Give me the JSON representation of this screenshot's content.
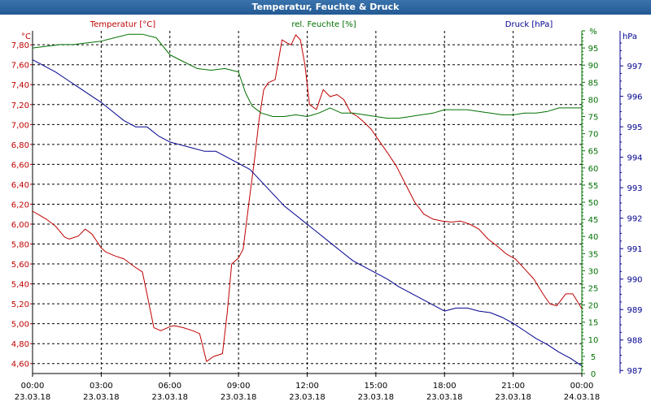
{
  "window": {
    "title": "Temperatur, Feuchte & Druck"
  },
  "chart_data": {
    "type": "line",
    "title": "Temperatur, Feuchte & Druck",
    "grid": true,
    "xlabel": "",
    "x_ticks": [
      {
        "time": "00:00",
        "date": "23.03.18"
      },
      {
        "time": "03:00",
        "date": "23.03.18"
      },
      {
        "time": "06:00",
        "date": "23.03.18"
      },
      {
        "time": "09:00",
        "date": "23.03.18"
      },
      {
        "time": "12:00",
        "date": "23.03.18"
      },
      {
        "time": "15:00",
        "date": "23.03.18"
      },
      {
        "time": "18:00",
        "date": "23.03.18"
      },
      {
        "time": "21:00",
        "date": "23.03.18"
      },
      {
        "time": "00:00",
        "date": "24.03.18"
      }
    ],
    "x_range_hours": [
      0,
      24
    ],
    "axes": {
      "temperature": {
        "label": "Temperatur [°C]",
        "unit": "°C",
        "color": "#c00000",
        "position": "left",
        "range": [
          4.5,
          7.94
        ],
        "ticks": [
          "4,60",
          "4,80",
          "5,00",
          "5,20",
          "5,40",
          "5,60",
          "5,80",
          "6,00",
          "6,20",
          "6,40",
          "6,60",
          "6,80",
          "7,00",
          "7,20",
          "7,40",
          "7,60",
          "7,80"
        ]
      },
      "humidity": {
        "label": "rel. Feuchte [%]",
        "unit": "%",
        "color": "#007000",
        "position": "right",
        "range": [
          0,
          100
        ],
        "ticks": [
          "0",
          "5",
          "10",
          "15",
          "20",
          "25",
          "30",
          "35",
          "40",
          "45",
          "50",
          "55",
          "60",
          "65",
          "70",
          "75",
          "80",
          "85",
          "90",
          "95",
          "%"
        ]
      },
      "pressure": {
        "label": "Druck [hPa]",
        "unit": "hPa",
        "color": "#000090",
        "position": "right",
        "range": [
          986.9,
          998.15
        ],
        "ticks": [
          "987",
          "988",
          "989",
          "990",
          "991",
          "992",
          "993",
          "994",
          "995",
          "996",
          "997",
          "hPa"
        ]
      }
    },
    "series": [
      {
        "name": "Temperatur [°C]",
        "axis": "temperature",
        "color": "#c00000",
        "x": [
          0,
          0.3,
          0.6,
          1,
          1.4,
          1.6,
          2,
          2.3,
          2.6,
          3,
          3.2,
          3.6,
          4,
          4.4,
          4.8,
          5,
          5.3,
          5.6,
          6,
          6.2,
          6.6,
          7,
          7.3,
          7.6,
          7.9,
          8.3,
          8.5,
          8.7,
          9,
          9.2,
          9.5,
          9.7,
          9.9,
          10.1,
          10.3,
          10.6,
          10.9,
          11.1,
          11.3,
          11.5,
          11.7,
          11.9,
          12.1,
          12.4,
          12.7,
          13,
          13.3,
          13.6,
          13.9,
          14.2,
          14.5,
          14.8,
          15.1,
          15.5,
          15.9,
          16.3,
          16.7,
          17.1,
          17.5,
          17.9,
          18.3,
          18.7,
          19.1,
          19.5,
          19.9,
          20.3,
          20.7,
          21.1,
          21.5,
          21.9,
          22.3,
          22.6,
          22.9,
          23.3,
          23.6,
          24
        ],
        "values": [
          6.13,
          6.09,
          6.05,
          5.98,
          5.87,
          5.85,
          5.88,
          5.95,
          5.9,
          5.76,
          5.72,
          5.68,
          5.65,
          5.58,
          5.52,
          5.3,
          4.96,
          4.93,
          4.97,
          4.98,
          4.96,
          4.93,
          4.9,
          4.62,
          4.67,
          4.7,
          5.1,
          5.6,
          5.66,
          5.75,
          6.3,
          6.65,
          7.05,
          7.35,
          7.42,
          7.45,
          7.85,
          7.82,
          7.8,
          7.9,
          7.85,
          7.6,
          7.2,
          7.15,
          7.35,
          7.28,
          7.3,
          7.25,
          7.12,
          7.08,
          7.02,
          6.95,
          6.85,
          6.72,
          6.58,
          6.4,
          6.22,
          6.1,
          6.05,
          6.03,
          6.02,
          6.03,
          6.0,
          5.95,
          5.85,
          5.78,
          5.7,
          5.65,
          5.55,
          5.45,
          5.3,
          5.2,
          5.18,
          5.3,
          5.3,
          5.15
        ]
      },
      {
        "name": "rel. Feuchte [%]",
        "axis": "humidity",
        "color": "#007000",
        "x": [
          0,
          0.6,
          1.2,
          1.8,
          2.4,
          3,
          3.6,
          4.2,
          4.8,
          5.4,
          6,
          6.6,
          7.2,
          7.8,
          8.4,
          9,
          9.3,
          9.6,
          10,
          10.5,
          11,
          11.5,
          12,
          12.5,
          13,
          13.5,
          14,
          14.5,
          15,
          15.5,
          16,
          16.5,
          17,
          17.5,
          18,
          18.5,
          19,
          19.5,
          20,
          20.5,
          21,
          21.5,
          22,
          22.5,
          23,
          23.5,
          24
        ],
        "values": [
          95,
          95.5,
          96,
          96,
          96.5,
          97,
          98,
          99,
          99,
          98,
          93,
          91,
          89,
          88.5,
          89,
          88,
          82,
          78,
          76,
          75,
          75,
          75.5,
          75,
          76,
          77.5,
          76,
          76,
          75.5,
          75,
          74.5,
          74.5,
          75,
          75.5,
          76,
          77,
          77,
          77,
          76.5,
          76,
          75.5,
          75.5,
          76,
          76,
          76.5,
          77.5,
          77.5,
          77.5
        ]
      },
      {
        "name": "Druck [hPa]",
        "axis": "pressure",
        "color": "#000090",
        "x": [
          0,
          0.5,
          1,
          1.5,
          2,
          2.5,
          3,
          3.5,
          4,
          4.5,
          5,
          5.5,
          6,
          6.5,
          7,
          7.5,
          8,
          8.5,
          9,
          9.5,
          10,
          10.5,
          11,
          11.5,
          12,
          12.5,
          13,
          13.5,
          14,
          14.5,
          15,
          15.5,
          16,
          16.5,
          17,
          17.5,
          18,
          18.5,
          19,
          19.5,
          20,
          20.5,
          21,
          21.5,
          22,
          22.5,
          23,
          23.5,
          24
        ],
        "values": [
          997.2,
          997.0,
          996.8,
          996.55,
          996.3,
          996.05,
          995.8,
          995.5,
          995.2,
          995.0,
          995.0,
          994.7,
          994.5,
          994.4,
          994.3,
          994.2,
          994.2,
          994.0,
          993.8,
          993.6,
          993.2,
          992.8,
          992.4,
          992.1,
          991.8,
          991.5,
          991.2,
          990.9,
          990.6,
          990.4,
          990.2,
          990.0,
          989.75,
          989.55,
          989.35,
          989.15,
          988.95,
          989.05,
          989.05,
          988.95,
          988.9,
          988.75,
          988.55,
          988.3,
          988.05,
          987.85,
          987.6,
          987.4,
          987.15
        ]
      }
    ]
  }
}
